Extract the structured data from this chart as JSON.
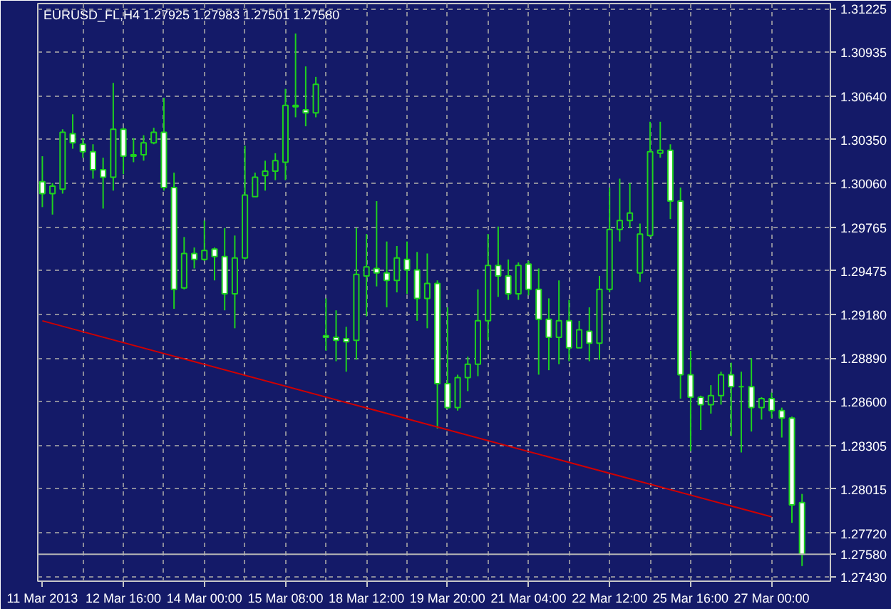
{
  "chart_data": {
    "type": "candlestick",
    "title": "EURUSD_FL,H4 1.27925 1.27983 1.27501 1.27580",
    "categories": [
      "11 Mar 2013",
      null,
      null,
      null,
      null,
      null,
      null,
      null,
      "12 Mar 16:00",
      null,
      null,
      null,
      null,
      null,
      null,
      null,
      "14 Mar 00:00",
      null,
      null,
      null,
      null,
      null,
      null,
      null,
      "15 Mar 08:00",
      null,
      null,
      null,
      null,
      null,
      null,
      null,
      "18 Mar 12:00",
      null,
      null,
      null,
      null,
      null,
      null,
      null,
      "19 Mar 20:00",
      null,
      null,
      null,
      null,
      null,
      null,
      null,
      "21 Mar 04:00",
      null,
      null,
      null,
      null,
      null,
      null,
      null,
      "22 Mar 12:00",
      null,
      null,
      null,
      null,
      null,
      null,
      null,
      "25 Mar 16:00",
      null,
      null,
      null,
      null,
      null,
      null,
      null,
      "27 Mar 00:00",
      null,
      null,
      null
    ],
    "ohlc": [
      [
        1.3007,
        1.3024,
        1.299,
        1.2999
      ],
      [
        1.2999,
        1.3006,
        1.2985,
        1.3004
      ],
      [
        1.3002,
        1.3042,
        1.2999,
        1.304
      ],
      [
        1.3039,
        1.3052,
        1.3029,
        1.3033
      ],
      [
        1.3032,
        1.3036,
        1.3023,
        1.3027
      ],
      [
        1.3027,
        1.3032,
        1.3009,
        1.3015
      ],
      [
        1.3015,
        1.3023,
        1.2989,
        1.301
      ],
      [
        1.301,
        1.3073,
        1.3001,
        1.3042
      ],
      [
        1.3042,
        1.3043,
        1.3012,
        1.3024
      ],
      [
        1.3025,
        1.3036,
        1.302,
        1.3024
      ],
      [
        1.3025,
        1.3038,
        1.3021,
        1.3033
      ],
      [
        1.3033,
        1.3043,
        1.3032,
        1.304
      ],
      [
        1.304,
        1.3063,
        1.3001,
        1.3003
      ],
      [
        1.3003,
        1.3013,
        1.2922,
        1.2935
      ],
      [
        1.2936,
        1.297,
        1.2935,
        1.2959
      ],
      [
        1.2959,
        1.2963,
        1.2949,
        1.2955
      ],
      [
        1.2955,
        1.2981,
        1.2954,
        1.2961
      ],
      [
        1.2962,
        1.2963,
        1.2941,
        1.2957
      ],
      [
        1.2957,
        1.2976,
        1.2921,
        1.2932
      ],
      [
        1.2932,
        1.2971,
        1.2909,
        1.2956
      ],
      [
        1.2956,
        1.3031,
        1.2955,
        1.2998
      ],
      [
        1.2997,
        1.3013,
        1.2997,
        1.301
      ],
      [
        1.3011,
        1.3021,
        1.3001,
        1.3014
      ],
      [
        1.3014,
        1.3026,
        1.3008,
        1.3021
      ],
      [
        1.302,
        1.3069,
        1.3008,
        1.3058
      ],
      [
        1.3058,
        1.3106,
        1.305,
        1.3057
      ],
      [
        1.3055,
        1.3084,
        1.3044,
        1.3053
      ],
      [
        1.3053,
        1.3077,
        1.305,
        1.3072
      ],
      [
        1.2904,
        1.2929,
        1.2894,
        1.2903
      ],
      [
        1.2903,
        1.2921,
        1.2887,
        1.2901
      ],
      [
        1.2902,
        1.291,
        1.288,
        1.29
      ],
      [
        1.2901,
        1.2976,
        1.2888,
        1.2945
      ],
      [
        1.2944,
        1.2972,
        1.2917,
        1.295
      ],
      [
        1.2949,
        1.2994,
        1.2937,
        1.2946
      ],
      [
        1.2946,
        1.2967,
        1.2923,
        1.2941
      ],
      [
        1.2941,
        1.2964,
        1.2933,
        1.2956
      ],
      [
        1.2955,
        1.2967,
        1.2932,
        1.2948
      ],
      [
        1.2948,
        1.296,
        1.2914,
        1.2929
      ],
      [
        1.2929,
        1.2959,
        1.2909,
        1.2939
      ],
      [
        1.2939,
        1.2941,
        1.2842,
        1.2872
      ],
      [
        1.2872,
        1.2923,
        1.2855,
        1.2856
      ],
      [
        1.2856,
        1.2878,
        1.2854,
        1.2876
      ],
      [
        1.2876,
        1.289,
        1.2867,
        1.2885
      ],
      [
        1.2885,
        1.2935,
        1.2877,
        1.2914
      ],
      [
        1.2914,
        1.2972,
        1.2901,
        1.2951
      ],
      [
        1.2951,
        1.2977,
        1.293,
        1.2944
      ],
      [
        1.2944,
        1.2955,
        1.2928,
        1.2932
      ],
      [
        1.2932,
        1.2953,
        1.2928,
        1.2951
      ],
      [
        1.2952,
        1.2954,
        1.2931,
        1.2935
      ],
      [
        1.2935,
        1.2949,
        1.2878,
        1.2915
      ],
      [
        1.2915,
        1.2929,
        1.2881,
        1.2903
      ],
      [
        1.2903,
        1.2941,
        1.2885,
        1.2914
      ],
      [
        1.2914,
        1.2928,
        1.2887,
        1.2896
      ],
      [
        1.2896,
        1.2914,
        1.2896,
        1.2908
      ],
      [
        1.2907,
        1.2923,
        1.2887,
        1.2899
      ],
      [
        1.2899,
        1.2944,
        1.2888,
        1.2935
      ],
      [
        1.2935,
        1.3003,
        1.2933,
        1.2975
      ],
      [
        1.2975,
        1.3009,
        1.2967,
        1.2981
      ],
      [
        1.2981,
        1.3006,
        1.2976,
        1.2986
      ],
      [
        1.2946,
        1.2979,
        1.294,
        1.2972
      ],
      [
        1.2971,
        1.3047,
        1.297,
        1.3027
      ],
      [
        1.3026,
        1.3047,
        1.3023,
        1.3028
      ],
      [
        1.3028,
        1.3032,
        1.2982,
        1.2994
      ],
      [
        1.2994,
        1.3003,
        1.2862,
        1.2878
      ],
      [
        1.2878,
        1.2894,
        1.2827,
        1.2863
      ],
      [
        1.2863,
        1.2864,
        1.2841,
        1.2858
      ],
      [
        1.2858,
        1.2871,
        1.2852,
        1.2864
      ],
      [
        1.2864,
        1.288,
        1.2858,
        1.2878
      ],
      [
        1.2878,
        1.2886,
        1.2837,
        1.287
      ],
      [
        1.287,
        1.288,
        1.2826,
        1.287
      ],
      [
        1.287,
        1.2889,
        1.284,
        1.2856
      ],
      [
        1.2856,
        1.2863,
        1.2848,
        1.2862
      ],
      [
        1.2862,
        1.2866,
        1.2849,
        1.2854
      ],
      [
        1.2854,
        1.2856,
        1.2836,
        1.2849
      ],
      [
        1.2849,
        1.285,
        1.2779,
        1.2791
      ],
      [
        1.27925,
        1.27983,
        1.27501,
        1.2758
      ]
    ],
    "color": "#1ed21e",
    "colors": [
      "#ffffff",
      "#141a68",
      "#141a68",
      "#ffffff",
      "#ffffff",
      "#ffffff",
      "#ffffff",
      "#141a68",
      "#ffffff",
      "#ffffff",
      "#141a68",
      "#141a68",
      "#ffffff",
      "#ffffff",
      "#141a68",
      "#ffffff",
      "#141a68",
      "#ffffff",
      "#ffffff",
      "#141a68",
      "#141a68",
      "#141a68",
      "#141a68",
      "#141a68",
      "#141a68",
      "#ffffff",
      "#ffffff",
      "#141a68",
      "#ffffff",
      "#ffffff",
      "#ffffff",
      "#141a68",
      "#141a68",
      "#ffffff",
      "#ffffff",
      "#141a68",
      "#ffffff",
      "#ffffff",
      "#141a68",
      "#ffffff",
      "#ffffff",
      "#141a68",
      "#141a68",
      "#141a68",
      "#141a68",
      "#ffffff",
      "#ffffff",
      "#141a68",
      "#ffffff",
      "#ffffff",
      "#ffffff",
      "#141a68",
      "#ffffff",
      "#141a68",
      "#ffffff",
      "#141a68",
      "#141a68",
      "#141a68",
      "#141a68",
      "#141a68",
      "#141a68",
      "#141a68",
      "#ffffff",
      "#ffffff",
      "#ffffff",
      "#ffffff",
      "#141a68",
      "#141a68",
      "#ffffff",
      "#1ed21e",
      "#ffffff",
      "#141a68",
      "#ffffff",
      "#ffffff",
      "#ffffff",
      "#ffffff"
    ],
    "series": [
      {
        "type": "line",
        "x": [
          "11 Mar 2013",
          "27 Mar 00:00"
        ],
        "values": [
          1.2914,
          1.2783
        ],
        "color": "#d00000"
      }
    ],
    "ylim": [
      1.274,
      1.3126
    ],
    "yticks": [
      {
        "value": 1.2743,
        "label": "1.27430"
      },
      {
        "value": 1.2772,
        "label": "1.27720"
      },
      1.28015,
      1.28305,
      {
        "value": 1.286,
        "label": "1.28600"
      },
      {
        "value": 1.2889,
        "label": "1.28890"
      },
      {
        "value": 1.2918,
        "label": "1.29180"
      },
      1.29475,
      1.29765,
      {
        "value": 1.3006,
        "label": "1.30060"
      },
      {
        "value": 1.3035,
        "label": "1.30350"
      },
      {
        "value": 1.3064,
        "label": "1.30640"
      },
      1.30935,
      1.31225
    ],
    "ref_lines": [
      {
        "axis": "y",
        "value": 1.2758,
        "label": "1.27580",
        "color": "#b4b4b4"
      }
    ],
    "grid": true
  }
}
